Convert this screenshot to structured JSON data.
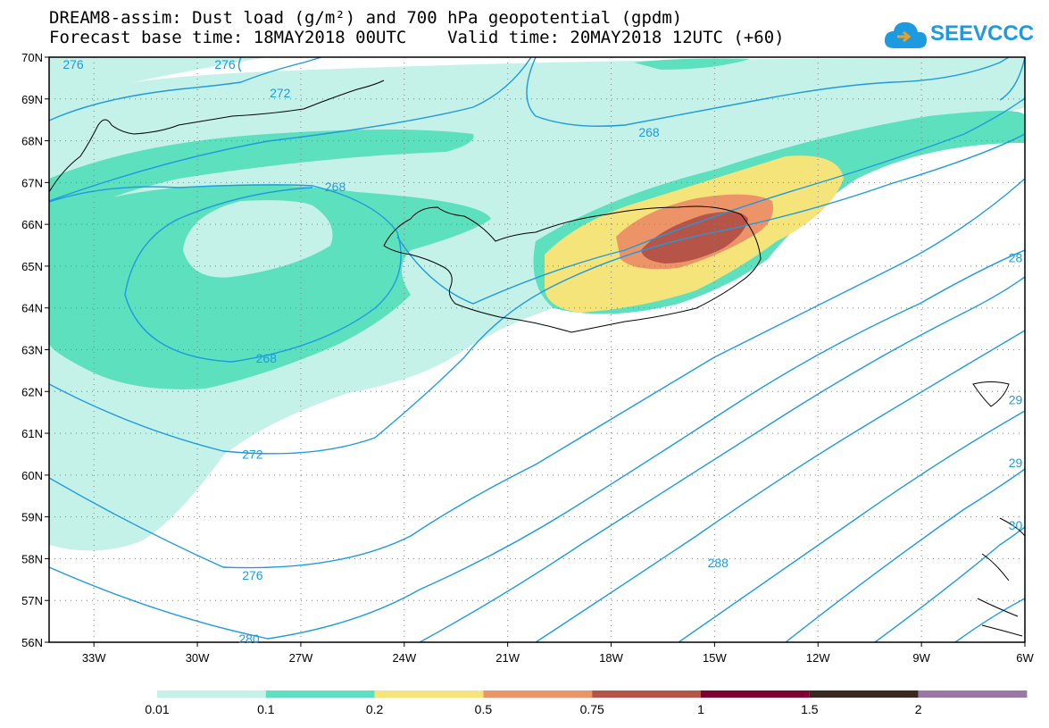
{
  "header": {
    "title_line1": "DREAM8-assim: Dust load (g/m²) and 700 hPa geopotential (gpdm)",
    "title_line2": "Forecast base time: 18MAY2018 00UTC    Valid time: 20MAY2018 12UTC (+60)",
    "logo_text": "SEEVCCC"
  },
  "axes": {
    "lat_labels": [
      "70N",
      "69N",
      "68N",
      "67N",
      "66N",
      "65N",
      "64N",
      "63N",
      "62N",
      "61N",
      "60N",
      "59N",
      "58N",
      "57N",
      "56N"
    ],
    "lon_labels": [
      "33W",
      "30W",
      "27W",
      "24W",
      "21W",
      "18W",
      "15W",
      "12W",
      "9W",
      "6W"
    ]
  },
  "contour_labels": [
    {
      "text": "276",
      "lon": -29.2,
      "lat": 69.95
    },
    {
      "text": "272",
      "lon": -27.6,
      "lat": 69.15
    },
    {
      "text": "268",
      "lon": -16.9,
      "lat": 68.2
    },
    {
      "text": "268",
      "lon": -26.0,
      "lat": 66.9
    },
    {
      "text": "268",
      "lon": -28.0,
      "lat": 62.8
    },
    {
      "text": "272",
      "lon": -28.4,
      "lat": 60.5
    },
    {
      "text": "276",
      "lon": -28.4,
      "lat": 57.6
    },
    {
      "text": "280",
      "lon": -28.5,
      "lat": 56.0
    },
    {
      "text": "288",
      "lon": -14.9,
      "lat": 57.9
    },
    {
      "text": "28",
      "lon": -6.1,
      "lat": 65.2
    },
    {
      "text": "29",
      "lon": -6.0,
      "lat": 61.8
    },
    {
      "text": "29",
      "lon": -6.1,
      "lat": 60.3
    },
    {
      "text": "30",
      "lon": -6.1,
      "lat": 58.8
    },
    {
      "text": "276",
      "lon": -33.6,
      "lat": 70.0
    }
  ],
  "colorbar": {
    "labels": [
      "0.01",
      "0.1",
      "0.2",
      "0.5",
      "0.75",
      "1",
      "1.5",
      "2"
    ],
    "colors": [
      "#c4f1e8",
      "#5de0bd",
      "#f5e47a",
      "#ec9468",
      "#b55447",
      "#800034",
      "#3b2822",
      "#9a77a5"
    ]
  },
  "colors": {
    "contour": "#1e9ae0",
    "coast": "#000000",
    "grid": "#808080"
  }
}
